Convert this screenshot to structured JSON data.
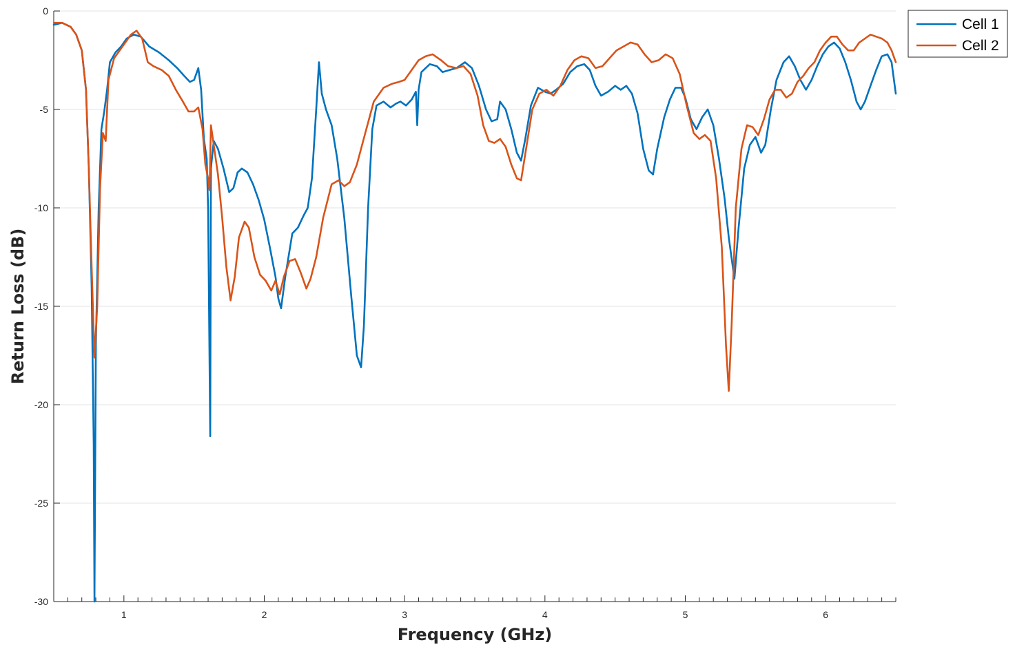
{
  "chart_data": {
    "type": "line",
    "title": "",
    "xlabel": "Frequency (GHz)",
    "ylabel": "Return Loss (dB)",
    "xlim": [
      0.5,
      6.5
    ],
    "ylim": [
      -30,
      0
    ],
    "x_ticks": [
      1,
      2,
      3,
      4,
      5,
      6
    ],
    "x_tick_labels": [
      "1",
      "2",
      "3",
      "4",
      "5",
      "6"
    ],
    "x_minor_step": 0.1,
    "y_ticks": [
      0,
      -5,
      -10,
      -15,
      -20,
      -25,
      -30
    ],
    "y_tick_labels": [
      "0",
      "-5",
      "-10",
      "-15",
      "-20",
      "-25",
      "-30"
    ],
    "grid": "horizontal",
    "legend_position": "top-right-outside",
    "series": [
      {
        "name": "Cell 1",
        "color": "#0072BD",
        "points": [
          [
            0.5,
            -0.7
          ],
          [
            0.56,
            -0.6
          ],
          [
            0.62,
            -0.8
          ],
          [
            0.66,
            -1.2
          ],
          [
            0.7,
            -2.0
          ],
          [
            0.73,
            -4.0
          ],
          [
            0.75,
            -8.0
          ],
          [
            0.77,
            -14.0
          ],
          [
            0.785,
            -22.0
          ],
          [
            0.79,
            -30.0
          ],
          [
            0.8,
            -17.0
          ],
          [
            0.82,
            -10.0
          ],
          [
            0.84,
            -6.0
          ],
          [
            0.86,
            -5.1
          ],
          [
            0.88,
            -4.0
          ],
          [
            0.9,
            -2.6
          ],
          [
            0.94,
            -2.1
          ],
          [
            0.98,
            -1.8
          ],
          [
            1.02,
            -1.4
          ],
          [
            1.07,
            -1.2
          ],
          [
            1.12,
            -1.3
          ],
          [
            1.18,
            -1.8
          ],
          [
            1.25,
            -2.1
          ],
          [
            1.32,
            -2.5
          ],
          [
            1.38,
            -2.9
          ],
          [
            1.43,
            -3.3
          ],
          [
            1.47,
            -3.6
          ],
          [
            1.5,
            -3.5
          ],
          [
            1.53,
            -2.9
          ],
          [
            1.55,
            -4.0
          ],
          [
            1.57,
            -6.5
          ],
          [
            1.59,
            -7.5
          ],
          [
            1.6,
            -10.0
          ],
          [
            1.615,
            -21.6
          ],
          [
            1.62,
            -8.0
          ],
          [
            1.64,
            -6.6
          ],
          [
            1.67,
            -7.0
          ],
          [
            1.71,
            -8.0
          ],
          [
            1.75,
            -9.2
          ],
          [
            1.78,
            -9.0
          ],
          [
            1.81,
            -8.2
          ],
          [
            1.84,
            -8.0
          ],
          [
            1.88,
            -8.2
          ],
          [
            1.92,
            -8.8
          ],
          [
            1.96,
            -9.6
          ],
          [
            2.0,
            -10.6
          ],
          [
            2.04,
            -12.0
          ],
          [
            2.08,
            -13.5
          ],
          [
            2.1,
            -14.6
          ],
          [
            2.12,
            -15.1
          ],
          [
            2.15,
            -13.5
          ],
          [
            2.2,
            -11.3
          ],
          [
            2.24,
            -11.0
          ],
          [
            2.28,
            -10.4
          ],
          [
            2.31,
            -10.0
          ],
          [
            2.34,
            -8.5
          ],
          [
            2.37,
            -5.0
          ],
          [
            2.39,
            -2.6
          ],
          [
            2.41,
            -4.2
          ],
          [
            2.44,
            -5.0
          ],
          [
            2.48,
            -5.8
          ],
          [
            2.52,
            -7.5
          ],
          [
            2.57,
            -10.5
          ],
          [
            2.62,
            -14.5
          ],
          [
            2.66,
            -17.5
          ],
          [
            2.69,
            -18.1
          ],
          [
            2.71,
            -16.0
          ],
          [
            2.74,
            -10.0
          ],
          [
            2.77,
            -6.0
          ],
          [
            2.8,
            -4.8
          ],
          [
            2.85,
            -4.6
          ],
          [
            2.9,
            -4.9
          ],
          [
            2.94,
            -4.7
          ],
          [
            2.97,
            -4.6
          ],
          [
            3.01,
            -4.8
          ],
          [
            3.05,
            -4.5
          ],
          [
            3.08,
            -4.1
          ],
          [
            3.09,
            -5.8
          ],
          [
            3.1,
            -4.0
          ],
          [
            3.12,
            -3.1
          ],
          [
            3.18,
            -2.7
          ],
          [
            3.23,
            -2.8
          ],
          [
            3.27,
            -3.1
          ],
          [
            3.32,
            -3.0
          ],
          [
            3.37,
            -2.9
          ],
          [
            3.43,
            -2.6
          ],
          [
            3.48,
            -2.9
          ],
          [
            3.53,
            -3.8
          ],
          [
            3.58,
            -5.0
          ],
          [
            3.62,
            -5.6
          ],
          [
            3.66,
            -5.5
          ],
          [
            3.68,
            -4.6
          ],
          [
            3.72,
            -5.0
          ],
          [
            3.76,
            -6.0
          ],
          [
            3.8,
            -7.2
          ],
          [
            3.83,
            -7.6
          ],
          [
            3.86,
            -6.5
          ],
          [
            3.9,
            -4.8
          ],
          [
            3.95,
            -3.9
          ],
          [
            4.0,
            -4.1
          ],
          [
            4.04,
            -4.2
          ],
          [
            4.08,
            -4.0
          ],
          [
            4.13,
            -3.7
          ],
          [
            4.18,
            -3.1
          ],
          [
            4.23,
            -2.8
          ],
          [
            4.28,
            -2.7
          ],
          [
            4.32,
            -3.0
          ],
          [
            4.36,
            -3.8
          ],
          [
            4.4,
            -4.3
          ],
          [
            4.45,
            -4.1
          ],
          [
            4.5,
            -3.8
          ],
          [
            4.54,
            -4.0
          ],
          [
            4.58,
            -3.8
          ],
          [
            4.62,
            -4.2
          ],
          [
            4.66,
            -5.2
          ],
          [
            4.7,
            -7.0
          ],
          [
            4.74,
            -8.1
          ],
          [
            4.77,
            -8.3
          ],
          [
            4.8,
            -7.0
          ],
          [
            4.85,
            -5.4
          ],
          [
            4.89,
            -4.5
          ],
          [
            4.93,
            -3.9
          ],
          [
            4.97,
            -3.9
          ],
          [
            5.0,
            -4.4
          ],
          [
            5.04,
            -5.5
          ],
          [
            5.08,
            -6.0
          ],
          [
            5.12,
            -5.4
          ],
          [
            5.16,
            -5.0
          ],
          [
            5.2,
            -5.8
          ],
          [
            5.24,
            -7.5
          ],
          [
            5.28,
            -9.5
          ],
          [
            5.31,
            -11.5
          ],
          [
            5.35,
            -13.6
          ],
          [
            5.38,
            -11.0
          ],
          [
            5.42,
            -8.0
          ],
          [
            5.46,
            -6.8
          ],
          [
            5.5,
            -6.4
          ],
          [
            5.54,
            -7.2
          ],
          [
            5.57,
            -6.8
          ],
          [
            5.61,
            -5.0
          ],
          [
            5.65,
            -3.5
          ],
          [
            5.7,
            -2.6
          ],
          [
            5.74,
            -2.3
          ],
          [
            5.78,
            -2.8
          ],
          [
            5.82,
            -3.5
          ],
          [
            5.86,
            -4.0
          ],
          [
            5.9,
            -3.5
          ],
          [
            5.94,
            -2.8
          ],
          [
            5.98,
            -2.2
          ],
          [
            6.02,
            -1.8
          ],
          [
            6.06,
            -1.6
          ],
          [
            6.1,
            -1.9
          ],
          [
            6.14,
            -2.6
          ],
          [
            6.18,
            -3.5
          ],
          [
            6.22,
            -4.6
          ],
          [
            6.25,
            -5.0
          ],
          [
            6.28,
            -4.6
          ],
          [
            6.32,
            -3.8
          ],
          [
            6.36,
            -3.0
          ],
          [
            6.4,
            -2.3
          ],
          [
            6.44,
            -2.2
          ],
          [
            6.47,
            -2.6
          ],
          [
            6.5,
            -4.2
          ]
        ]
      },
      {
        "name": "Cell 2",
        "color": "#D95319",
        "points": [
          [
            0.5,
            -0.6
          ],
          [
            0.56,
            -0.6
          ],
          [
            0.62,
            -0.8
          ],
          [
            0.66,
            -1.2
          ],
          [
            0.7,
            -2.0
          ],
          [
            0.73,
            -4.0
          ],
          [
            0.75,
            -8.0
          ],
          [
            0.77,
            -13.0
          ],
          [
            0.79,
            -17.6
          ],
          [
            0.81,
            -15.0
          ],
          [
            0.83,
            -9.0
          ],
          [
            0.85,
            -6.2
          ],
          [
            0.87,
            -6.6
          ],
          [
            0.89,
            -3.5
          ],
          [
            0.93,
            -2.4
          ],
          [
            0.97,
            -2.0
          ],
          [
            1.01,
            -1.6
          ],
          [
            1.05,
            -1.2
          ],
          [
            1.09,
            -1.0
          ],
          [
            1.13,
            -1.4
          ],
          [
            1.17,
            -2.6
          ],
          [
            1.21,
            -2.8
          ],
          [
            1.27,
            -3.0
          ],
          [
            1.32,
            -3.3
          ],
          [
            1.37,
            -4.0
          ],
          [
            1.42,
            -4.6
          ],
          [
            1.46,
            -5.1
          ],
          [
            1.5,
            -5.1
          ],
          [
            1.53,
            -4.9
          ],
          [
            1.56,
            -6.0
          ],
          [
            1.58,
            -7.8
          ],
          [
            1.6,
            -8.5
          ],
          [
            1.61,
            -9.1
          ],
          [
            1.62,
            -5.8
          ],
          [
            1.64,
            -6.8
          ],
          [
            1.67,
            -8.3
          ],
          [
            1.7,
            -10.5
          ],
          [
            1.73,
            -13.0
          ],
          [
            1.76,
            -14.7
          ],
          [
            1.79,
            -13.5
          ],
          [
            1.82,
            -11.5
          ],
          [
            1.86,
            -10.7
          ],
          [
            1.89,
            -11.0
          ],
          [
            1.93,
            -12.5
          ],
          [
            1.97,
            -13.4
          ],
          [
            2.01,
            -13.7
          ],
          [
            2.05,
            -14.2
          ],
          [
            2.08,
            -13.7
          ],
          [
            2.11,
            -14.4
          ],
          [
            2.14,
            -13.5
          ],
          [
            2.18,
            -12.7
          ],
          [
            2.22,
            -12.6
          ],
          [
            2.26,
            -13.3
          ],
          [
            2.3,
            -14.1
          ],
          [
            2.33,
            -13.6
          ],
          [
            2.37,
            -12.5
          ],
          [
            2.42,
            -10.5
          ],
          [
            2.48,
            -8.8
          ],
          [
            2.53,
            -8.6
          ],
          [
            2.57,
            -8.9
          ],
          [
            2.61,
            -8.7
          ],
          [
            2.66,
            -7.8
          ],
          [
            2.72,
            -6.2
          ],
          [
            2.78,
            -4.6
          ],
          [
            2.85,
            -3.9
          ],
          [
            2.91,
            -3.7
          ],
          [
            2.96,
            -3.6
          ],
          [
            3.0,
            -3.5
          ],
          [
            3.05,
            -3.0
          ],
          [
            3.1,
            -2.5
          ],
          [
            3.15,
            -2.3
          ],
          [
            3.2,
            -2.2
          ],
          [
            3.26,
            -2.5
          ],
          [
            3.31,
            -2.8
          ],
          [
            3.37,
            -2.9
          ],
          [
            3.42,
            -2.8
          ],
          [
            3.47,
            -3.2
          ],
          [
            3.52,
            -4.3
          ],
          [
            3.56,
            -5.8
          ],
          [
            3.6,
            -6.6
          ],
          [
            3.64,
            -6.7
          ],
          [
            3.68,
            -6.5
          ],
          [
            3.72,
            -6.9
          ],
          [
            3.76,
            -7.8
          ],
          [
            3.8,
            -8.5
          ],
          [
            3.83,
            -8.6
          ],
          [
            3.87,
            -6.8
          ],
          [
            3.91,
            -5.0
          ],
          [
            3.96,
            -4.2
          ],
          [
            4.01,
            -4.0
          ],
          [
            4.06,
            -4.3
          ],
          [
            4.11,
            -3.8
          ],
          [
            4.16,
            -3.0
          ],
          [
            4.21,
            -2.5
          ],
          [
            4.26,
            -2.3
          ],
          [
            4.31,
            -2.4
          ],
          [
            4.36,
            -2.9
          ],
          [
            4.41,
            -2.8
          ],
          [
            4.46,
            -2.4
          ],
          [
            4.51,
            -2.0
          ],
          [
            4.56,
            -1.8
          ],
          [
            4.61,
            -1.6
          ],
          [
            4.66,
            -1.7
          ],
          [
            4.71,
            -2.2
          ],
          [
            4.76,
            -2.6
          ],
          [
            4.81,
            -2.5
          ],
          [
            4.86,
            -2.2
          ],
          [
            4.91,
            -2.4
          ],
          [
            4.96,
            -3.2
          ],
          [
            5.01,
            -4.8
          ],
          [
            5.06,
            -6.2
          ],
          [
            5.1,
            -6.5
          ],
          [
            5.14,
            -6.3
          ],
          [
            5.18,
            -6.6
          ],
          [
            5.22,
            -8.5
          ],
          [
            5.26,
            -12.0
          ],
          [
            5.29,
            -17.0
          ],
          [
            5.31,
            -19.3
          ],
          [
            5.33,
            -16.0
          ],
          [
            5.36,
            -10.0
          ],
          [
            5.4,
            -7.0
          ],
          [
            5.44,
            -5.8
          ],
          [
            5.48,
            -5.9
          ],
          [
            5.52,
            -6.3
          ],
          [
            5.56,
            -5.5
          ],
          [
            5.6,
            -4.5
          ],
          [
            5.64,
            -4.0
          ],
          [
            5.68,
            -4.0
          ],
          [
            5.72,
            -4.4
          ],
          [
            5.76,
            -4.2
          ],
          [
            5.8,
            -3.6
          ],
          [
            5.84,
            -3.3
          ],
          [
            5.88,
            -2.9
          ],
          [
            5.92,
            -2.6
          ],
          [
            5.96,
            -2.0
          ],
          [
            6.0,
            -1.6
          ],
          [
            6.04,
            -1.3
          ],
          [
            6.08,
            -1.3
          ],
          [
            6.12,
            -1.7
          ],
          [
            6.16,
            -2.0
          ],
          [
            6.2,
            -2.0
          ],
          [
            6.24,
            -1.6
          ],
          [
            6.28,
            -1.4
          ],
          [
            6.32,
            -1.2
          ],
          [
            6.36,
            -1.3
          ],
          [
            6.4,
            -1.4
          ],
          [
            6.44,
            -1.6
          ],
          [
            6.47,
            -2.0
          ],
          [
            6.5,
            -2.6
          ]
        ]
      }
    ]
  }
}
